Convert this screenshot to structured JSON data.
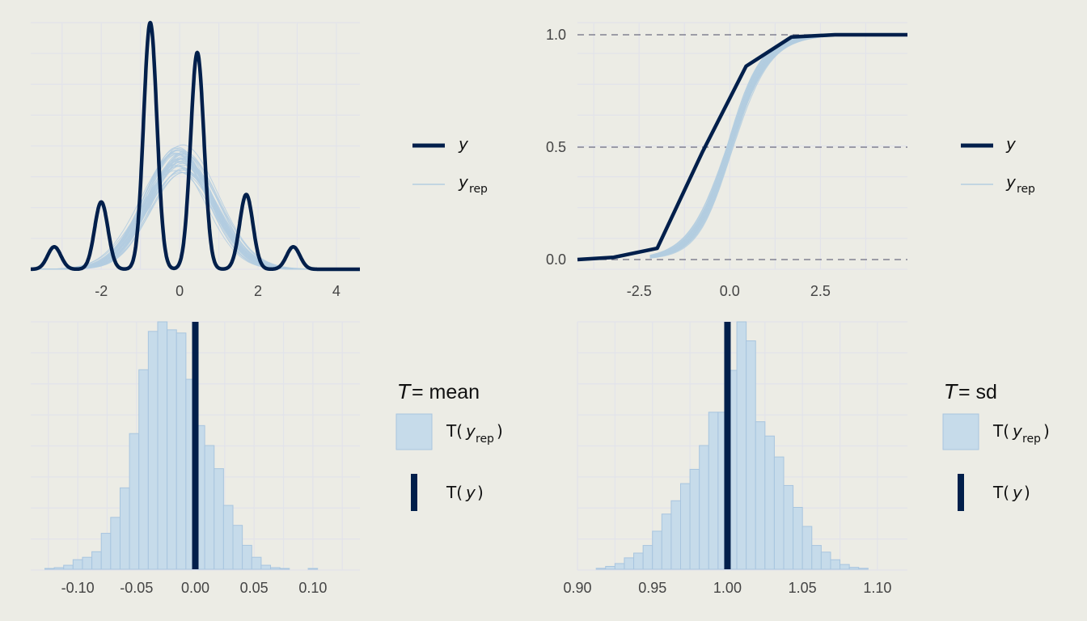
{
  "colors": {
    "background": "#ecece5",
    "grid": "#e2e3ea",
    "observed": "#011f4b",
    "replicated": "#b3cde0",
    "hist_fill": "#c6dbea",
    "hist_stroke": "#a8c5df",
    "dashed": "#6b6b80",
    "tick_text": "#444444"
  },
  "chart_data": [
    {
      "id": "ppc_dens_overlay",
      "type": "line",
      "subtype": "density overlay",
      "x_ticks": [
        "-2",
        "0",
        "2",
        "4"
      ],
      "xlim": [
        -3.8,
        4.6
      ],
      "y_axis_shown": false,
      "grid": true,
      "legend": {
        "placement": "right",
        "entries": [
          {
            "symbol": "y",
            "sub": "",
            "style": "thick-line",
            "color_key": "observed"
          },
          {
            "symbol": "y",
            "sub": "rep",
            "style": "thin-line",
            "color_key": "replicated"
          }
        ]
      },
      "series": [
        {
          "name": "y",
          "kernel_bw": 0.17,
          "weights": [
            0.3,
            0.9,
            3.3,
            2.9,
            1.0,
            0.3
          ],
          "centers": [
            -3.2,
            -2.0,
            -0.75,
            0.45,
            1.7,
            2.9
          ]
        },
        {
          "name": "y_rep",
          "count": 40,
          "mean": 0.0,
          "sd": 0.85
        }
      ]
    },
    {
      "id": "ppc_ecdf_overlay",
      "type": "line",
      "subtype": "ecdf overlay",
      "x_ticks": [
        "-2.5",
        "0.0",
        "2.5"
      ],
      "y_ticks": [
        "0.0",
        "0.5",
        "1.0"
      ],
      "xlim": [
        -4.2,
        4.9
      ],
      "ylim": [
        0,
        1
      ],
      "grid": true,
      "reference_lines_y": [
        0,
        0.5,
        1
      ],
      "legend": {
        "placement": "right",
        "entries": [
          {
            "symbol": "y",
            "sub": "",
            "style": "thick-line",
            "color_key": "observed"
          },
          {
            "symbol": "y",
            "sub": "rep",
            "style": "thin-line",
            "color_key": "replicated"
          }
        ]
      },
      "series": [
        {
          "name": "y",
          "x": [
            -4.2,
            -3.2,
            -2.0,
            -0.75,
            0.45,
            1.7,
            2.9,
            4.9
          ],
          "y": [
            0.0,
            0.01,
            0.05,
            0.48,
            0.86,
            0.99,
            1.0,
            1.0
          ]
        },
        {
          "name": "y_rep",
          "count": 40,
          "mean": 0.0,
          "sd": 0.85
        }
      ]
    },
    {
      "id": "ppc_stat_mean",
      "type": "bar",
      "subtype": "histogram",
      "x_ticks": [
        "-0.10",
        "-0.05",
        "0.00",
        "0.05",
        "0.10"
      ],
      "xlim": [
        -0.14,
        0.14
      ],
      "bin_start": -0.128,
      "bin_width": 0.008,
      "counts": [
        1,
        2,
        5,
        12,
        15,
        22,
        45,
        65,
        102,
        170,
        250,
        298,
        310,
        300,
        296,
        238,
        180,
        155,
        126,
        80,
        55,
        30,
        15,
        5,
        2,
        1,
        0,
        0,
        1,
        0,
        0,
        0
      ],
      "observed_stat": 0.0,
      "y_axis_shown": false,
      "grid": true,
      "legend": {
        "placement": "right",
        "title_symbol": "T",
        "title_text": " = mean",
        "entries": [
          {
            "label_pre": "T(",
            "symbol": "y",
            "sub": "rep",
            "label_post": ")",
            "style": "box",
            "color_key": "hist_fill"
          },
          {
            "label_pre": "T(",
            "symbol": "y",
            "sub": "",
            "label_post": ")",
            "style": "vbar",
            "color_key": "observed"
          }
        ]
      }
    },
    {
      "id": "ppc_stat_sd",
      "type": "bar",
      "subtype": "histogram",
      "x_ticks": [
        "0.90",
        "0.95",
        "1.00",
        "1.05",
        "1.10"
      ],
      "xlim": [
        0.9,
        1.12
      ],
      "bin_start": 0.9,
      "bin_width": 0.00625,
      "counts": [
        0,
        0,
        1,
        3,
        6,
        12,
        17,
        25,
        40,
        58,
        72,
        90,
        105,
        130,
        165,
        165,
        209,
        260,
        240,
        155,
        140,
        118,
        88,
        65,
        45,
        25,
        18,
        10,
        5,
        2,
        1,
        0
      ],
      "observed_stat": 1.0,
      "y_axis_shown": false,
      "grid": true,
      "legend": {
        "placement": "right",
        "title_symbol": "T",
        "title_text": " = sd",
        "entries": [
          {
            "label_pre": "T(",
            "symbol": "y",
            "sub": "rep",
            "label_post": ")",
            "style": "box",
            "color_key": "hist_fill"
          },
          {
            "label_pre": "T(",
            "symbol": "y",
            "sub": "",
            "label_post": ")",
            "style": "vbar",
            "color_key": "observed"
          }
        ]
      }
    }
  ]
}
